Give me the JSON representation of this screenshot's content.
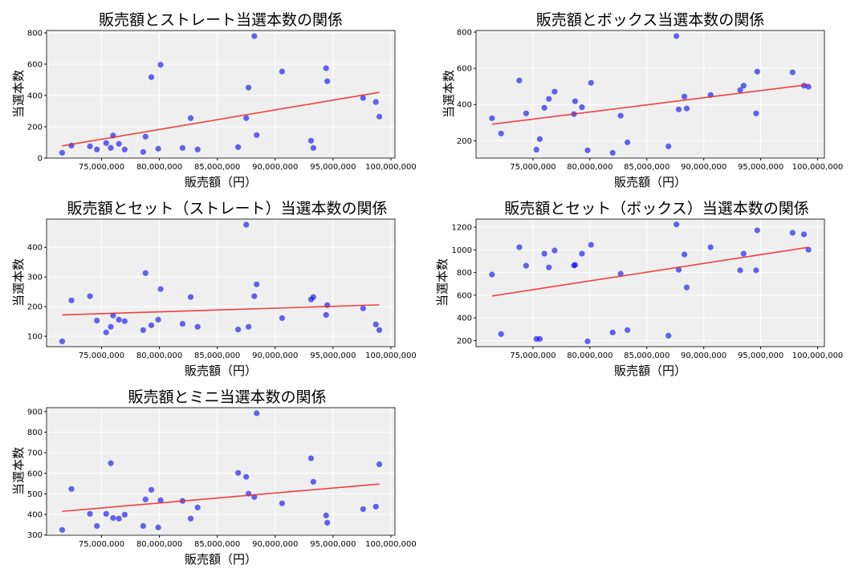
{
  "colors": {
    "point": "#0000ee",
    "trend": "#ee2222",
    "background": "#efefef",
    "grid": "#ffffff"
  },
  "chart_data": [
    {
      "type": "scatter",
      "title": "販売額とストレート当選本数の関係",
      "xlabel": "販売額（円）",
      "ylabel": "当選本数",
      "xlim": [
        70250000,
        100350000
      ],
      "ylim": [
        0,
        815
      ],
      "xticks": [
        75000000,
        80000000,
        85000000,
        90000000,
        95000000,
        100000000
      ],
      "xtick_labels": [
        "75,000,000",
        "80,000,000",
        "85,000,000",
        "90,000,000",
        "95,000,000",
        "100,000,000"
      ],
      "yticks": [
        0,
        200,
        400,
        600,
        800
      ],
      "ytick_labels": [
        "0",
        "200",
        "400",
        "600",
        "800"
      ],
      "grid": true,
      "trend": [
        [
          71600000,
          78
        ],
        [
          99000000,
          420
        ]
      ],
      "points": [
        [
          71600000,
          34
        ],
        [
          72400000,
          80
        ],
        [
          74000000,
          75
        ],
        [
          74600000,
          55
        ],
        [
          75400000,
          96
        ],
        [
          75800000,
          65
        ],
        [
          76000000,
          144
        ],
        [
          76500000,
          91
        ],
        [
          77000000,
          55
        ],
        [
          78600000,
          39
        ],
        [
          78800000,
          137
        ],
        [
          79300000,
          517
        ],
        [
          79900000,
          60
        ],
        [
          80100000,
          596
        ],
        [
          82000000,
          65
        ],
        [
          83300000,
          55
        ],
        [
          82700000,
          255
        ],
        [
          86800000,
          70
        ],
        [
          87500000,
          255
        ],
        [
          87700000,
          450
        ],
        [
          88200000,
          779
        ],
        [
          88400000,
          147
        ],
        [
          90600000,
          553
        ],
        [
          93100000,
          111
        ],
        [
          93300000,
          65
        ],
        [
          94400000,
          574
        ],
        [
          94500000,
          491
        ],
        [
          97600000,
          384
        ],
        [
          98700000,
          358
        ],
        [
          99000000,
          265
        ]
      ]
    },
    {
      "type": "scatter",
      "title": "販売額とボックス当選本数の関係",
      "xlabel": "販売額（円）",
      "ylabel": "当選本数",
      "xlim": [
        70000000,
        100600000
      ],
      "ylim": [
        104,
        809
      ],
      "xticks": [
        75000000,
        80000000,
        85000000,
        90000000,
        95000000,
        100000000
      ],
      "xtick_labels": [
        "75,000,000",
        "80,000,000",
        "85,000,000",
        "90,000,000",
        "95,000,000",
        "100,000,000"
      ],
      "yticks": [
        200,
        400,
        600,
        800
      ],
      "ytick_labels": [
        "200",
        "400",
        "600",
        "800"
      ],
      "grid": true,
      "trend": [
        [
          71400000,
          291
        ],
        [
          99200000,
          510
        ]
      ],
      "points": [
        [
          71400000,
          324
        ],
        [
          72200000,
          240
        ],
        [
          73800000,
          533
        ],
        [
          74400000,
          351
        ],
        [
          75300000,
          151
        ],
        [
          75600000,
          209
        ],
        [
          76000000,
          382
        ],
        [
          76400000,
          431
        ],
        [
          76900000,
          471
        ],
        [
          78600000,
          347
        ],
        [
          78700000,
          418
        ],
        [
          79300000,
          385
        ],
        [
          79800000,
          147
        ],
        [
          80100000,
          520
        ],
        [
          82000000,
          133
        ],
        [
          82700000,
          338
        ],
        [
          83300000,
          191
        ],
        [
          86900000,
          169
        ],
        [
          87600000,
          778
        ],
        [
          87800000,
          373
        ],
        [
          88300000,
          444
        ],
        [
          88500000,
          378
        ],
        [
          90600000,
          453
        ],
        [
          93200000,
          480
        ],
        [
          93500000,
          504
        ],
        [
          94600000,
          351
        ],
        [
          94700000,
          582
        ],
        [
          97800000,
          578
        ],
        [
          98800000,
          504
        ],
        [
          99200000,
          498
        ]
      ]
    },
    {
      "type": "scatter",
      "title": "販売額とセット（ストレート）当選本数の関係",
      "xlabel": "販売額（円）",
      "ylabel": "当選本数",
      "xlim": [
        70250000,
        100350000
      ],
      "ylim": [
        65,
        495
      ],
      "xticks": [
        75000000,
        80000000,
        85000000,
        90000000,
        95000000,
        100000000
      ],
      "xtick_labels": [
        "75,000,000",
        "80,000,000",
        "85,000,000",
        "90,000,000",
        "95,000,000",
        "100,000,000"
      ],
      "yticks": [
        100,
        200,
        300,
        400
      ],
      "ytick_labels": [
        "100",
        "200",
        "300",
        "400"
      ],
      "grid": true,
      "trend": [
        [
          71600000,
          172
        ],
        [
          99000000,
          206
        ]
      ],
      "points": [
        [
          71600000,
          83
        ],
        [
          72400000,
          221
        ],
        [
          74000000,
          235
        ],
        [
          74600000,
          153
        ],
        [
          75400000,
          113
        ],
        [
          75800000,
          132
        ],
        [
          76000000,
          170
        ],
        [
          76500000,
          156
        ],
        [
          77000000,
          151
        ],
        [
          78600000,
          121
        ],
        [
          78800000,
          313
        ],
        [
          79300000,
          137
        ],
        [
          79900000,
          156
        ],
        [
          80100000,
          259
        ],
        [
          82000000,
          142
        ],
        [
          82700000,
          232
        ],
        [
          83300000,
          132
        ],
        [
          86800000,
          123
        ],
        [
          87500000,
          476
        ],
        [
          87700000,
          132
        ],
        [
          88200000,
          235
        ],
        [
          88400000,
          275
        ],
        [
          90600000,
          161
        ],
        [
          93100000,
          224
        ],
        [
          93300000,
          232
        ],
        [
          94400000,
          172
        ],
        [
          94500000,
          205
        ],
        [
          97600000,
          194
        ],
        [
          98700000,
          140
        ],
        [
          99000000,
          121
        ]
      ]
    },
    {
      "type": "scatter",
      "title": "販売額とセット（ボックス）当選本数の関係",
      "xlabel": "販売額（円）",
      "ylabel": "当選本数",
      "xlim": [
        70000000,
        100600000
      ],
      "ylim": [
        146,
        1271
      ],
      "xticks": [
        75000000,
        80000000,
        85000000,
        90000000,
        95000000,
        100000000
      ],
      "xtick_labels": [
        "75,000,000",
        "80,000,000",
        "85,000,000",
        "90,000,000",
        "95,000,000",
        "100,000,000"
      ],
      "yticks": [
        200,
        400,
        600,
        800,
        1000,
        1200
      ],
      "ytick_labels": [
        "200",
        "400",
        "600",
        "800",
        "1000",
        "1200"
      ],
      "grid": true,
      "trend": [
        [
          71400000,
          593
        ],
        [
          99200000,
          1022
        ]
      ],
      "points": [
        [
          71400000,
          782
        ],
        [
          72200000,
          257
        ],
        [
          73800000,
          1023
        ],
        [
          74400000,
          860
        ],
        [
          75300000,
          214
        ],
        [
          75600000,
          214
        ],
        [
          76000000,
          966
        ],
        [
          76400000,
          845
        ],
        [
          76900000,
          994
        ],
        [
          78600000,
          862
        ],
        [
          78700000,
          867
        ],
        [
          79300000,
          966
        ],
        [
          79800000,
          193
        ],
        [
          80100000,
          1044
        ],
        [
          82000000,
          271
        ],
        [
          82700000,
          789
        ],
        [
          83300000,
          292
        ],
        [
          86900000,
          243
        ],
        [
          87600000,
          1224
        ],
        [
          87800000,
          824
        ],
        [
          88300000,
          959
        ],
        [
          88500000,
          668
        ],
        [
          90600000,
          1023
        ],
        [
          93200000,
          819
        ],
        [
          93500000,
          966
        ],
        [
          94600000,
          819
        ],
        [
          94700000,
          1172
        ],
        [
          97800000,
          1150
        ],
        [
          98800000,
          1136
        ],
        [
          99200000,
          1001
        ]
      ]
    },
    {
      "type": "scatter",
      "title": "販売額とミニ当選本数の関係",
      "xlabel": "販売額（円）",
      "ylabel": "当選本数",
      "xlim": [
        70250000,
        100350000
      ],
      "ylim": [
        299,
        919
      ],
      "xticks": [
        75000000,
        80000000,
        85000000,
        90000000,
        95000000,
        100000000
      ],
      "xtick_labels": [
        "75,000,000",
        "80,000,000",
        "85,000,000",
        "90,000,000",
        "95,000,000",
        "100,000,000"
      ],
      "yticks": [
        300,
        400,
        500,
        600,
        700,
        800,
        900
      ],
      "ytick_labels": [
        "300",
        "400",
        "500",
        "600",
        "700",
        "800",
        "900"
      ],
      "grid": true,
      "trend": [
        [
          71600000,
          415
        ],
        [
          99000000,
          548
        ]
      ],
      "points": [
        [
          71600000,
          325
        ],
        [
          72400000,
          524
        ],
        [
          74000000,
          403
        ],
        [
          74600000,
          344
        ],
        [
          75400000,
          403
        ],
        [
          75800000,
          649
        ],
        [
          76000000,
          383
        ],
        [
          76500000,
          380
        ],
        [
          77000000,
          399
        ],
        [
          78600000,
          344
        ],
        [
          78800000,
          473
        ],
        [
          79300000,
          520
        ],
        [
          79900000,
          337
        ],
        [
          80100000,
          469
        ],
        [
          82000000,
          466
        ],
        [
          82700000,
          380
        ],
        [
          83300000,
          434
        ],
        [
          86800000,
          602
        ],
        [
          87500000,
          583
        ],
        [
          87700000,
          501
        ],
        [
          88200000,
          485
        ],
        [
          88400000,
          892
        ],
        [
          90600000,
          454
        ],
        [
          93100000,
          673
        ],
        [
          93300000,
          559
        ],
        [
          94400000,
          395
        ],
        [
          94500000,
          360
        ],
        [
          97600000,
          426
        ],
        [
          98700000,
          438
        ],
        [
          99000000,
          644
        ]
      ]
    }
  ]
}
